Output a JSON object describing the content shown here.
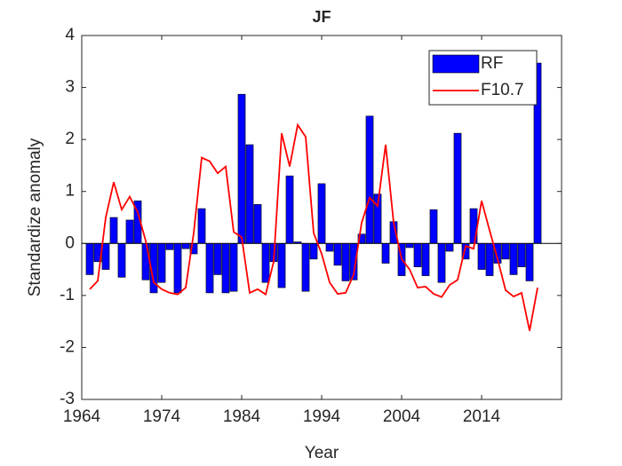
{
  "chart_data": {
    "type": "bar-line",
    "title": "JF",
    "xlabel": "Year",
    "ylabel": "Standardize anomaly",
    "x": [
      1965,
      1966,
      1967,
      1968,
      1969,
      1970,
      1971,
      1972,
      1973,
      1974,
      1975,
      1976,
      1977,
      1978,
      1979,
      1980,
      1981,
      1982,
      1983,
      1984,
      1985,
      1986,
      1987,
      1988,
      1989,
      1990,
      1991,
      1992,
      1993,
      1994,
      1995,
      1996,
      1997,
      1998,
      1999,
      2000,
      2001,
      2002,
      2003,
      2004,
      2005,
      2006,
      2007,
      2008,
      2009,
      2010,
      2011,
      2012,
      2013,
      2014,
      2015,
      2016,
      2017,
      2018,
      2019,
      2020,
      2021
    ],
    "series": [
      {
        "name": "RF",
        "kind": "bar",
        "color": "#0000ff",
        "values": [
          -0.6,
          -0.35,
          -0.5,
          0.5,
          -0.65,
          0.45,
          0.82,
          -0.7,
          -0.95,
          -0.75,
          -0.12,
          -0.95,
          -0.1,
          -0.2,
          0.67,
          -0.95,
          -0.6,
          -0.95,
          -0.92,
          2.87,
          1.9,
          0.75,
          -0.75,
          -0.35,
          -0.85,
          1.3,
          0.03,
          -0.92,
          -0.3,
          1.15,
          -0.15,
          -0.42,
          -0.72,
          -0.7,
          0.18,
          2.45,
          0.95,
          -0.38,
          0.42,
          -0.62,
          -0.08,
          -0.45,
          -0.62,
          0.65,
          -0.75,
          -0.15,
          2.12,
          -0.3,
          0.67,
          -0.5,
          -0.62,
          -0.38,
          -0.3,
          -0.6,
          -0.45,
          -0.72,
          3.47
        ]
      },
      {
        "name": "F10.7",
        "kind": "line",
        "color": "#ff0000",
        "values": [
          -0.88,
          -0.72,
          0.5,
          1.18,
          0.65,
          0.9,
          0.6,
          0.05,
          -0.75,
          -0.88,
          -0.95,
          -0.98,
          -0.85,
          0.2,
          1.65,
          1.58,
          1.35,
          1.48,
          0.22,
          0.12,
          -0.95,
          -0.88,
          -0.98,
          -0.35,
          2.12,
          1.48,
          2.28,
          2.05,
          0.2,
          -0.2,
          -0.75,
          -0.97,
          -0.95,
          -0.6,
          0.4,
          0.88,
          0.72,
          1.9,
          0.4,
          -0.3,
          -0.5,
          -0.85,
          -0.83,
          -0.97,
          -1.03,
          -0.8,
          -0.7,
          -0.05,
          -0.1,
          0.82,
          0.25,
          -0.3,
          -0.9,
          -1.02,
          -0.95,
          -1.68,
          -0.85
        ]
      }
    ],
    "xlim": [
      1964,
      2024
    ],
    "xticks": [
      1964,
      1974,
      1984,
      1994,
      2004,
      2014
    ],
    "ylim": [
      -3,
      4
    ],
    "yticks": [
      -3,
      -2,
      -1,
      0,
      1,
      2,
      3,
      4
    ],
    "legend": "upper right"
  }
}
